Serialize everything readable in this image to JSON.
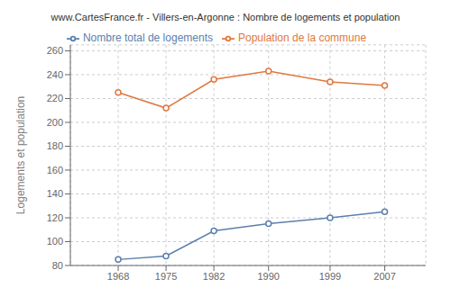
{
  "chart_data": {
    "type": "line",
    "title": "www.CartesFrance.fr - Villers-en-Argonne : Nombre de logements et population",
    "ylabel": "Logements et population",
    "x": [
      1968,
      1975,
      1982,
      1990,
      1999,
      2007
    ],
    "series": [
      {
        "name": "Nombre total de logements",
        "color": "#5b7fad",
        "marker": "circle",
        "values": [
          85,
          88,
          109,
          115,
          120,
          125
        ]
      },
      {
        "name": "Population de la commune",
        "color": "#e07840",
        "marker": "circle",
        "values": [
          225,
          212,
          236,
          243,
          234,
          231
        ]
      }
    ],
    "xlim": [
      1961,
      2013
    ],
    "xticks": [
      1968,
      1975,
      1982,
      1990,
      1999,
      2007
    ],
    "ylim": [
      80,
      265
    ],
    "yticks": [
      80,
      100,
      120,
      140,
      160,
      180,
      200,
      220,
      240,
      260
    ],
    "grid": true,
    "legend": "top"
  }
}
